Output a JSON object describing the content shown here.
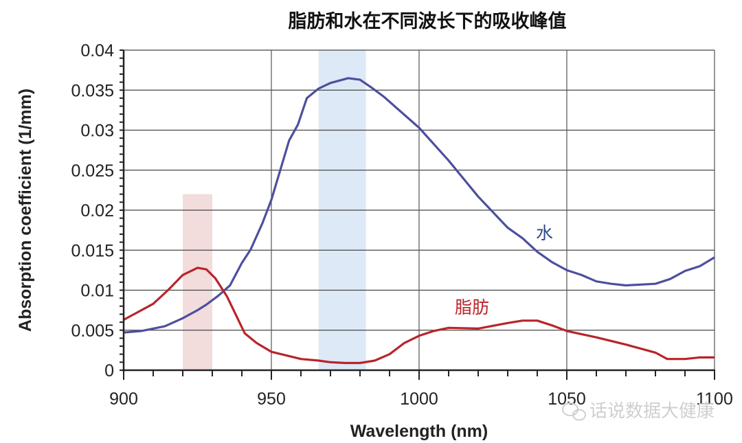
{
  "chart_data": {
    "type": "line",
    "title": "脂肪和水在不同波长下的吸收峰值",
    "xlabel": "Wavelength (nm)",
    "ylabel": "Absorption coefficient (1/mm)",
    "xlim": [
      900,
      1100
    ],
    "ylim": [
      0,
      0.04
    ],
    "xticks": [
      900,
      950,
      1000,
      1050,
      1100
    ],
    "yticks": [
      0,
      0.005,
      0.01,
      0.015,
      0.02,
      0.025,
      0.03,
      0.035,
      0.04
    ],
    "ytick_labels": [
      "0",
      "0.005",
      "0.01",
      "0.015",
      "0.02",
      "0.025",
      "0.03",
      "0.035",
      "0.04"
    ],
    "grid": true,
    "legend": "inline labels",
    "series": [
      {
        "name": "水",
        "color": "#4d4f9c",
        "label_color": "#2e4a8a",
        "x": [
          900,
          906,
          910,
          914,
          920,
          925,
          928,
          932,
          936,
          940,
          943,
          947,
          950,
          953,
          956,
          959,
          962,
          966,
          970,
          976,
          980,
          984,
          988,
          1000,
          1010,
          1020,
          1030,
          1035,
          1040,
          1045,
          1050,
          1055,
          1060,
          1065,
          1070,
          1080,
          1085,
          1090,
          1095,
          1100
        ],
        "y": [
          0.0047,
          0.0049,
          0.0052,
          0.0055,
          0.0065,
          0.0075,
          0.0082,
          0.0093,
          0.0106,
          0.0134,
          0.0151,
          0.0184,
          0.0213,
          0.025,
          0.0287,
          0.0307,
          0.034,
          0.0352,
          0.0359,
          0.0365,
          0.0363,
          0.0353,
          0.0342,
          0.0303,
          0.0262,
          0.0217,
          0.0178,
          0.0165,
          0.0148,
          0.0135,
          0.0125,
          0.0119,
          0.0111,
          0.0108,
          0.0106,
          0.0108,
          0.0114,
          0.0124,
          0.013,
          0.0141
        ]
      },
      {
        "name": "脂肪",
        "color": "#b8242a",
        "label_color": "#b8242a",
        "x": [
          900,
          905,
          910,
          915,
          920,
          925,
          928,
          931,
          935,
          938,
          941,
          945,
          950,
          960,
          966,
          970,
          975,
          980,
          985,
          990,
          995,
          1000,
          1005,
          1010,
          1020,
          1030,
          1035,
          1040,
          1045,
          1050,
          1060,
          1070,
          1080,
          1084,
          1090,
          1095,
          1100
        ],
        "y": [
          0.0063,
          0.0073,
          0.0083,
          0.01,
          0.0119,
          0.0128,
          0.0126,
          0.0115,
          0.0092,
          0.0069,
          0.0046,
          0.0034,
          0.0023,
          0.0014,
          0.0012,
          0.001,
          0.0009,
          0.0009,
          0.0012,
          0.002,
          0.0034,
          0.0043,
          0.0049,
          0.0053,
          0.0052,
          0.0059,
          0.0062,
          0.0062,
          0.0056,
          0.0049,
          0.0041,
          0.0032,
          0.0022,
          0.0014,
          0.0014,
          0.0016,
          0.0016
        ]
      }
    ],
    "highlight_bands": [
      {
        "x": [
          920,
          930
        ],
        "y": [
          0,
          0.022
        ],
        "color": "#f3dcdc"
      },
      {
        "x": [
          966,
          982
        ],
        "y": [
          0,
          0.04
        ],
        "color": "#dde9f6"
      }
    ]
  },
  "watermark": {
    "text": "话说数据大健康",
    "icon": "wechat-icon"
  }
}
